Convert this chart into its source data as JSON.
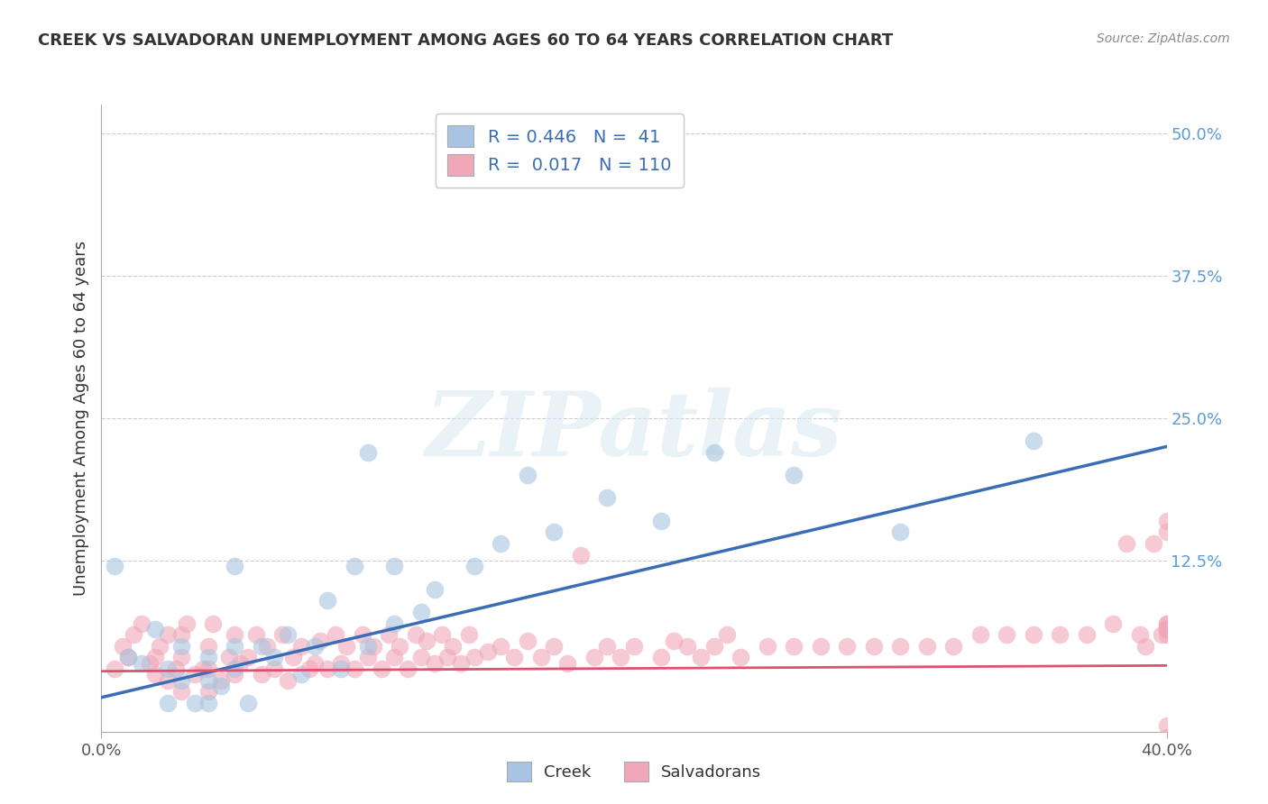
{
  "title": "CREEK VS SALVADORAN UNEMPLOYMENT AMONG AGES 60 TO 64 YEARS CORRELATION CHART",
  "source": "Source: ZipAtlas.com",
  "ylabel": "Unemployment Among Ages 60 to 64 years",
  "xlim": [
    0.0,
    0.4
  ],
  "ylim": [
    -0.025,
    0.525
  ],
  "xticks": [
    0.0,
    0.4
  ],
  "xticklabels": [
    "0.0%",
    "40.0%"
  ],
  "yticks_left": [],
  "yticks_right": [
    0.125,
    0.25,
    0.375,
    0.5
  ],
  "yticklabels_right": [
    "12.5%",
    "25.0%",
    "37.5%",
    "50.0%"
  ],
  "grid_yticks": [
    0.125,
    0.25,
    0.375,
    0.5
  ],
  "grid_color": "#cccccc",
  "background_color": "#ffffff",
  "creek_color": "#a8c4e0",
  "creek_line_color": "#3a6db5",
  "salvadoran_color": "#f0a8b8",
  "salvadoran_line_color": "#e05070",
  "creek_R": 0.446,
  "creek_N": 41,
  "salvadoran_R": 0.017,
  "salvadoran_N": 110,
  "watermark": "ZIPatlas",
  "legend_creek": "Creek",
  "legend_salvadoran": "Salvadorans",
  "creek_line_x0": 0.0,
  "creek_line_x1": 0.4,
  "creek_line_y0": 0.005,
  "creek_line_y1": 0.225,
  "salv_line_x0": 0.0,
  "salv_line_x1": 0.4,
  "salv_line_y0": 0.028,
  "salv_line_y1": 0.033,
  "creek_x": [
    0.005,
    0.01,
    0.015,
    0.02,
    0.025,
    0.025,
    0.03,
    0.03,
    0.035,
    0.04,
    0.04,
    0.04,
    0.045,
    0.05,
    0.05,
    0.05,
    0.055,
    0.06,
    0.065,
    0.07,
    0.075,
    0.08,
    0.085,
    0.09,
    0.095,
    0.1,
    0.1,
    0.11,
    0.11,
    0.12,
    0.125,
    0.14,
    0.15,
    0.16,
    0.17,
    0.19,
    0.21,
    0.23,
    0.26,
    0.3,
    0.35
  ],
  "creek_y": [
    0.12,
    0.04,
    0.035,
    0.065,
    0.0,
    0.03,
    0.02,
    0.05,
    0.0,
    0.0,
    0.02,
    0.04,
    0.015,
    0.03,
    0.05,
    0.12,
    0.0,
    0.05,
    0.04,
    0.06,
    0.025,
    0.05,
    0.09,
    0.03,
    0.12,
    0.05,
    0.22,
    0.07,
    0.12,
    0.08,
    0.1,
    0.12,
    0.14,
    0.2,
    0.15,
    0.18,
    0.16,
    0.22,
    0.2,
    0.15,
    0.23
  ],
  "salvadoran_x": [
    0.005,
    0.008,
    0.01,
    0.012,
    0.015,
    0.018,
    0.02,
    0.02,
    0.022,
    0.025,
    0.025,
    0.028,
    0.03,
    0.03,
    0.03,
    0.032,
    0.035,
    0.038,
    0.04,
    0.04,
    0.04,
    0.042,
    0.045,
    0.048,
    0.05,
    0.05,
    0.052,
    0.055,
    0.058,
    0.06,
    0.062,
    0.065,
    0.068,
    0.07,
    0.072,
    0.075,
    0.078,
    0.08,
    0.082,
    0.085,
    0.088,
    0.09,
    0.092,
    0.095,
    0.098,
    0.1,
    0.102,
    0.105,
    0.108,
    0.11,
    0.112,
    0.115,
    0.118,
    0.12,
    0.122,
    0.125,
    0.128,
    0.13,
    0.132,
    0.135,
    0.138,
    0.14,
    0.145,
    0.15,
    0.155,
    0.16,
    0.165,
    0.17,
    0.175,
    0.18,
    0.185,
    0.19,
    0.195,
    0.2,
    0.21,
    0.215,
    0.22,
    0.225,
    0.23,
    0.235,
    0.24,
    0.25,
    0.26,
    0.27,
    0.28,
    0.29,
    0.3,
    0.31,
    0.32,
    0.33,
    0.34,
    0.35,
    0.36,
    0.37,
    0.38,
    0.385,
    0.39,
    0.392,
    0.395,
    0.398,
    0.4,
    0.4,
    0.4,
    0.4,
    0.4,
    0.4,
    0.4,
    0.4,
    0.4,
    0.4
  ],
  "salvadoran_y": [
    0.03,
    0.05,
    0.04,
    0.06,
    0.07,
    0.035,
    0.025,
    0.04,
    0.05,
    0.02,
    0.06,
    0.03,
    0.01,
    0.04,
    0.06,
    0.07,
    0.025,
    0.03,
    0.01,
    0.03,
    0.05,
    0.07,
    0.02,
    0.04,
    0.025,
    0.06,
    0.035,
    0.04,
    0.06,
    0.025,
    0.05,
    0.03,
    0.06,
    0.02,
    0.04,
    0.05,
    0.03,
    0.035,
    0.055,
    0.03,
    0.06,
    0.035,
    0.05,
    0.03,
    0.06,
    0.04,
    0.05,
    0.03,
    0.06,
    0.04,
    0.05,
    0.03,
    0.06,
    0.04,
    0.055,
    0.035,
    0.06,
    0.04,
    0.05,
    0.035,
    0.06,
    0.04,
    0.045,
    0.05,
    0.04,
    0.055,
    0.04,
    0.05,
    0.035,
    0.13,
    0.04,
    0.05,
    0.04,
    0.05,
    0.04,
    0.055,
    0.05,
    0.04,
    0.05,
    0.06,
    0.04,
    0.05,
    0.05,
    0.05,
    0.05,
    0.05,
    0.05,
    0.05,
    0.05,
    0.06,
    0.06,
    0.06,
    0.06,
    0.06,
    0.07,
    0.14,
    0.06,
    0.05,
    0.14,
    0.06,
    0.065,
    0.07,
    -0.02,
    0.065,
    0.15,
    0.06,
    -0.03,
    0.16,
    0.07,
    0.065
  ]
}
